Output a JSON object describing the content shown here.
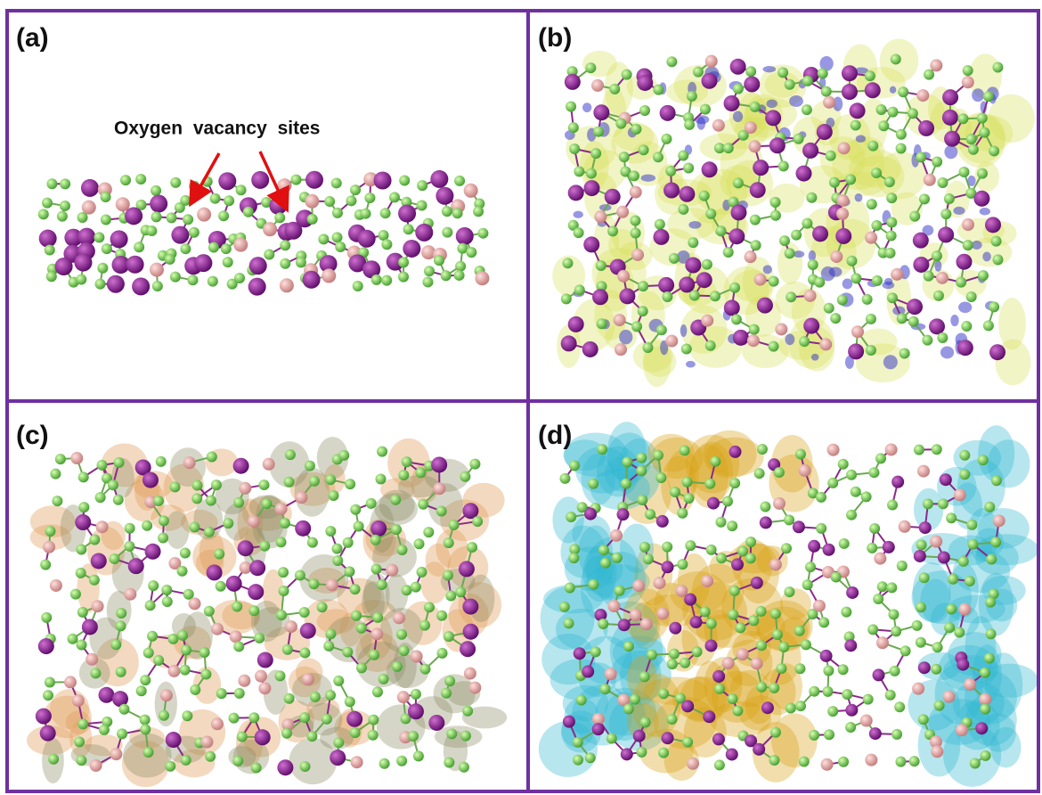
{
  "panels": [
    {
      "label": "(a)",
      "annotation": "Oxygen vacancy sites"
    },
    {
      "label": "(b)"
    },
    {
      "label": "(c)"
    },
    {
      "label": "(d)"
    }
  ]
}
